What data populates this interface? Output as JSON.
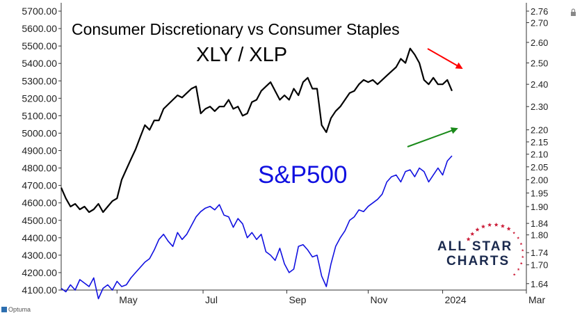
{
  "chart_data": {
    "type": "line",
    "title": "Consumer Discretionary vs Consumer Staples",
    "ratio_label": "XLY / XLP",
    "spx_label": "S&P500",
    "x_tick_labels": [
      "May",
      "Jul",
      "Sep",
      "Nov",
      "2024",
      "Mar"
    ],
    "left_axis": {
      "ylim": [
        4100,
        5700
      ],
      "ticks": [
        4100,
        4200,
        4300,
        4400,
        4500,
        4600,
        4700,
        4800,
        4900,
        5000,
        5100,
        5200,
        5300,
        5400,
        5500,
        5600,
        5700
      ],
      "tick_labels": [
        "4100.00",
        "4200.00",
        "4300.00",
        "4400.00",
        "4500.00",
        "4600.00",
        "4700.00",
        "4800.00",
        "4900.00",
        "5000.00",
        "5100.00",
        "5200.00",
        "5300.00",
        "5400.00",
        "5500.00",
        "5600.00",
        "5700.00"
      ]
    },
    "right_axis": {
      "scale": "log",
      "ylim": [
        1.62,
        2.76
      ],
      "ticks": [
        1.64,
        1.7,
        1.74,
        1.8,
        1.84,
        1.9,
        1.95,
        2.0,
        2.05,
        2.1,
        2.15,
        2.2,
        2.3,
        2.4,
        2.5,
        2.6,
        2.7,
        2.76
      ],
      "tick_labels": [
        "1.64",
        "1.70",
        "1.74",
        "1.80",
        "1.84",
        "1.90",
        "1.95",
        "2.00",
        "2.05",
        "2.10",
        "2.15",
        "2.20",
        "2.30",
        "2.40",
        "2.50",
        "2.60",
        "2.70",
        "2.76"
      ]
    },
    "x_range": [
      0,
      100
    ],
    "x_tick_positions": [
      12,
      30.5,
      48.5,
      66,
      82,
      100
    ],
    "series": [
      {
        "name": "XLY / XLP",
        "axis": "right",
        "color": "#000000",
        "x": [
          0,
          1,
          2,
          3,
          4,
          5,
          6,
          7,
          8,
          9,
          10,
          11,
          12,
          13,
          14,
          15,
          16,
          17,
          18,
          19,
          20,
          21,
          22,
          23,
          24,
          25,
          26,
          27,
          28,
          29,
          30,
          31,
          32,
          33,
          34,
          35,
          36,
          37,
          38,
          39,
          40,
          41,
          42,
          43,
          44,
          45,
          46,
          47,
          48,
          49,
          50,
          51,
          52,
          53,
          54,
          55,
          56,
          57,
          58,
          59,
          60,
          61,
          62,
          63,
          64,
          65,
          66,
          67,
          68,
          69,
          70,
          71,
          72,
          73,
          74,
          75,
          76,
          77,
          78,
          79,
          80,
          81,
          82,
          83,
          84
        ],
        "values": [
          1.97,
          1.93,
          1.9,
          1.91,
          1.89,
          1.9,
          1.88,
          1.89,
          1.91,
          1.88,
          1.9,
          1.92,
          1.93,
          2.0,
          2.04,
          2.08,
          2.12,
          2.17,
          2.22,
          2.2,
          2.24,
          2.24,
          2.29,
          2.31,
          2.33,
          2.35,
          2.34,
          2.36,
          2.38,
          2.39,
          2.27,
          2.29,
          2.3,
          2.28,
          2.3,
          2.3,
          2.33,
          2.29,
          2.3,
          2.26,
          2.27,
          2.32,
          2.33,
          2.37,
          2.39,
          2.41,
          2.37,
          2.33,
          2.35,
          2.33,
          2.38,
          2.35,
          2.41,
          2.43,
          2.38,
          2.38,
          2.22,
          2.19,
          2.25,
          2.28,
          2.3,
          2.33,
          2.36,
          2.37,
          2.4,
          2.42,
          2.41,
          2.42,
          2.4,
          2.42,
          2.44,
          2.46,
          2.48,
          2.52,
          2.5,
          2.57,
          2.54,
          2.5,
          2.42,
          2.4,
          2.43,
          2.4,
          2.4,
          2.42,
          2.37
        ]
      },
      {
        "name": "S&P500",
        "axis": "left",
        "color": "#1010e0",
        "x": [
          0,
          1,
          2,
          3,
          4,
          5,
          6,
          7,
          8,
          9,
          10,
          11,
          12,
          13,
          14,
          15,
          16,
          17,
          18,
          19,
          20,
          21,
          22,
          23,
          24,
          25,
          26,
          27,
          28,
          29,
          30,
          31,
          32,
          33,
          34,
          35,
          36,
          37,
          38,
          39,
          40,
          41,
          42,
          43,
          44,
          45,
          46,
          47,
          48,
          49,
          50,
          51,
          52,
          53,
          54,
          55,
          56,
          57,
          58,
          59,
          60,
          61,
          62,
          63,
          64,
          65,
          66,
          67,
          68,
          69,
          70,
          71,
          72,
          73,
          74,
          75,
          76,
          77,
          78,
          79,
          80,
          81,
          82,
          83,
          84
        ],
        "values": [
          4110,
          4090,
          4130,
          4100,
          4160,
          4140,
          4120,
          4170,
          4050,
          4110,
          4130,
          4100,
          4150,
          4120,
          4130,
          4170,
          4200,
          4230,
          4260,
          4280,
          4330,
          4390,
          4420,
          4380,
          4350,
          4430,
          4390,
          4420,
          4470,
          4520,
          4550,
          4570,
          4580,
          4560,
          4590,
          4530,
          4520,
          4460,
          4510,
          4480,
          4400,
          4430,
          4390,
          4420,
          4320,
          4300,
          4270,
          4340,
          4250,
          4200,
          4220,
          4350,
          4360,
          4330,
          4290,
          4300,
          4180,
          4120,
          4250,
          4350,
          4400,
          4440,
          4500,
          4520,
          4560,
          4550,
          4580,
          4600,
          4620,
          4650,
          4720,
          4750,
          4760,
          4720,
          4780,
          4790,
          4750,
          4800,
          4780,
          4720,
          4760,
          4800,
          4760,
          4840,
          4870
        ]
      }
    ],
    "annotations": [
      {
        "type": "arrow",
        "color": "#ff0000",
        "direction": "down-right"
      },
      {
        "type": "arrow",
        "color": "#1a8a1a",
        "direction": "up-right"
      }
    ]
  },
  "logo": {
    "line1": "ALL STAR",
    "line2": "CHARTS"
  },
  "footer": {
    "vendor": "Optuma"
  },
  "colors": {
    "ratio": "#000000",
    "spx": "#1010e0",
    "red_arrow": "#ff0000",
    "green_arrow": "#1a8a1a",
    "logo_star": "#cc1f3a",
    "logo_text": "#1b2a4e"
  }
}
